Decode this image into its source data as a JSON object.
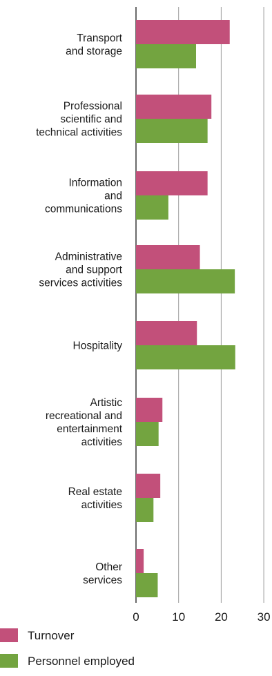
{
  "chart_data": {
    "type": "bar",
    "orientation": "horizontal",
    "categories": [
      [
        "Transport",
        "and storage"
      ],
      [
        "Professional",
        "scientific and",
        "technical activities"
      ],
      [
        "Information",
        "and",
        "communications"
      ],
      [
        "Administrative",
        "and support",
        "services activities"
      ],
      [
        "Hospitality"
      ],
      [
        "Artistic",
        "recreational and",
        "entertainment",
        "activities"
      ],
      [
        "Real estate",
        "activities"
      ],
      [
        "Other",
        "services"
      ]
    ],
    "series": [
      {
        "name": "Turnover",
        "color": "#c2507a",
        "values": [
          22.0,
          17.7,
          16.8,
          15.0,
          14.3,
          6.2,
          5.7,
          1.8
        ]
      },
      {
        "name": "Personnel employed",
        "color": "#73a440",
        "values": [
          14.1,
          16.8,
          7.6,
          23.2,
          23.3,
          5.3,
          4.1,
          5.1
        ]
      }
    ],
    "xlim": [
      0,
      30
    ],
    "xticks": [
      "0",
      "10",
      "20",
      "30"
    ],
    "grid": true,
    "legend": "bottom-left",
    "title": "",
    "xlabel": "",
    "ylabel": ""
  }
}
